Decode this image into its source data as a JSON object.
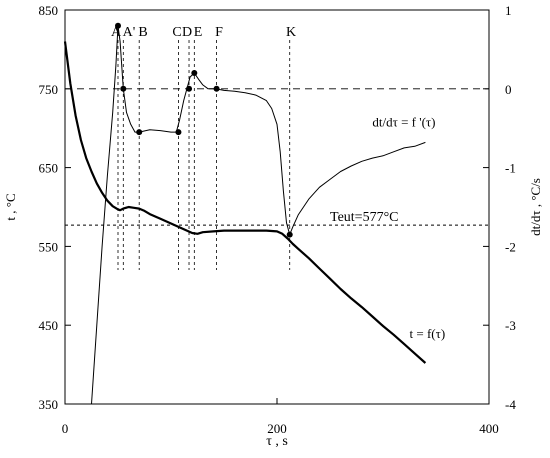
{
  "chart_data": {
    "type": "line",
    "title": "",
    "xlabel": "τ , s",
    "ylabel_left": "t , °C",
    "ylabel_right": "dt/dτ , °C/s",
    "xlim": [
      0,
      400
    ],
    "ylim_left": [
      350,
      850
    ],
    "ylim_right": [
      -4,
      1
    ],
    "x_ticks": [
      "0",
      "200",
      "400"
    ],
    "y_ticks_left": [
      "350",
      "450",
      "550",
      "650",
      "750",
      "850"
    ],
    "y_ticks_right": [
      "-4",
      "-3",
      "-2",
      "-1",
      "0",
      "1"
    ],
    "grid": false,
    "series": [
      {
        "name": "t = f(τ)",
        "axis": "left",
        "x": [
          0,
          5,
          10,
          15,
          20,
          25,
          30,
          35,
          40,
          45,
          50,
          52,
          55,
          60,
          65,
          70,
          75,
          80,
          90,
          100,
          110,
          115,
          120,
          125,
          130,
          140,
          150,
          160,
          170,
          180,
          190,
          200,
          205,
          210,
          215,
          220,
          230,
          240,
          250,
          260,
          270,
          280,
          290,
          300,
          310,
          320,
          330,
          340
        ],
        "y": [
          810,
          757,
          716,
          685,
          662,
          645,
          630,
          618,
          608,
          601,
          597,
          596,
          598,
          600,
          599,
          598,
          595,
          591,
          585,
          579,
          573,
          570,
          567,
          566,
          568,
          569,
          570,
          570,
          570,
          570,
          570,
          569,
          566,
          560,
          553,
          547,
          535,
          522,
          509,
          496,
          484,
          473,
          461,
          449,
          438,
          426,
          414,
          402
        ]
      },
      {
        "name": "dt/dτ = f '(τ)",
        "axis": "right",
        "x": [
          25,
          30,
          35,
          40,
          45,
          48,
          50,
          52,
          55,
          58,
          62,
          66,
          70,
          80,
          90,
          100,
          105,
          108,
          112,
          115,
          118,
          122,
          126,
          130,
          135,
          142,
          150,
          160,
          170,
          180,
          190,
          195,
          200,
          203,
          206,
          209,
          212,
          215,
          220,
          230,
          240,
          250,
          260,
          270,
          280,
          290,
          300,
          310,
          320,
          330,
          340
        ],
        "y": [
          -4.0,
          -3.0,
          -2.0,
          -1.1,
          -0.3,
          0.3,
          0.8,
          0.6,
          0.0,
          -0.3,
          -0.45,
          -0.55,
          -0.55,
          -0.52,
          -0.53,
          -0.55,
          -0.55,
          -0.4,
          -0.15,
          0.0,
          0.15,
          0.2,
          0.12,
          0.05,
          0.0,
          0.0,
          -0.02,
          -0.03,
          -0.05,
          -0.08,
          -0.15,
          -0.25,
          -0.45,
          -0.8,
          -1.3,
          -1.7,
          -1.85,
          -1.75,
          -1.6,
          -1.4,
          -1.25,
          -1.15,
          -1.05,
          -0.98,
          -0.92,
          -0.88,
          -0.85,
          -0.8,
          -0.75,
          -0.73,
          -0.68
        ]
      }
    ],
    "markers": [
      {
        "label": "A",
        "x": 50
      },
      {
        "label": "A'",
        "x": 55
      },
      {
        "label": "B",
        "x": 70
      },
      {
        "label": "C",
        "x": 107
      },
      {
        "label": "D",
        "x": 117
      },
      {
        "label": "E",
        "x": 122
      },
      {
        "label": "F",
        "x": 143
      },
      {
        "label": "K",
        "x": 212
      }
    ],
    "points": [
      {
        "x": 50,
        "y": 0.8
      },
      {
        "x": 55,
        "y": 0.0
      },
      {
        "x": 70,
        "y": -0.55
      },
      {
        "x": 107,
        "y": -0.55
      },
      {
        "x": 117,
        "y": 0.0
      },
      {
        "x": 122,
        "y": 0.2
      },
      {
        "x": 143,
        "y": 0.0
      },
      {
        "x": 212,
        "y": -1.85
      }
    ],
    "reference_lines": [
      {
        "axis": "right",
        "value": 0,
        "label": ""
      },
      {
        "axis": "left",
        "value": 577,
        "label": "Teut=577°C"
      }
    ],
    "annotations": [
      {
        "text": "dt/dτ = f '(τ)",
        "x": 290,
        "y": -0.48,
        "axis": "right"
      },
      {
        "text": "t = f(τ)",
        "x": 325,
        "y": 434,
        "axis": "left"
      }
    ]
  }
}
